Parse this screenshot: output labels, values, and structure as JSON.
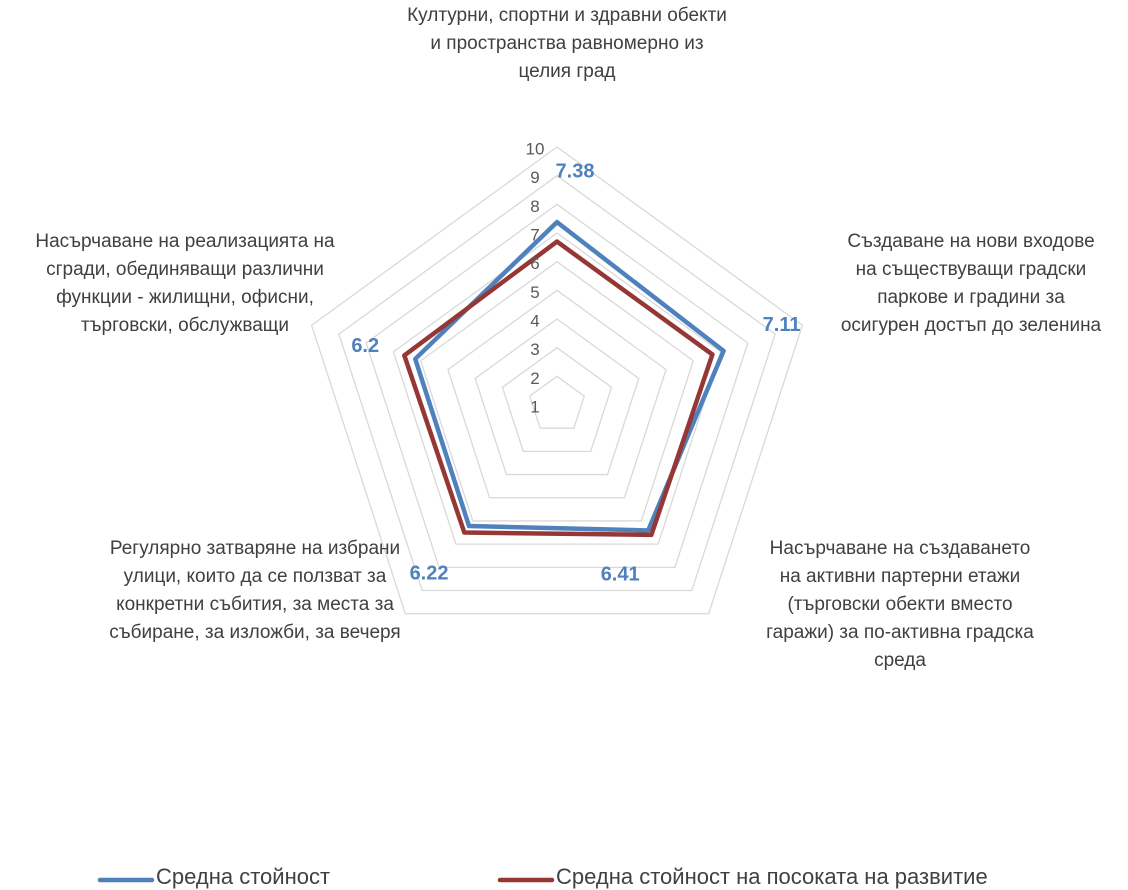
{
  "chart_data": {
    "type": "radar",
    "categories": [
      "Културни, спортни и здравни обекти и пространства равномерно из целия град",
      "Създаване на нови входове на съществуващи градски паркове и градини за осигурен достъп до зеленина",
      "Насърчаване на създаването на активни партерни етажи (търговски обекти вместо гаражи) за по-активна градска среда",
      "Регулярно затваряне на избрани улици, които да се ползват за конкретни събития, за места за събиране, за изложби, за вечеря",
      "Насърчаване на реализацията на сгради, обединяващи различни функции - жилищни, офисни, търговски, обслужващи"
    ],
    "series": [
      {
        "name": "Средна стойност",
        "color": "#4f81bd",
        "values": [
          7.38,
          7.11,
          6.41,
          6.22,
          6.2
        ]
      },
      {
        "name": "Средна стойност на посоката на развитие",
        "color": "#953735",
        "values": [
          6.7,
          6.7,
          6.6,
          6.5,
          6.6
        ]
      }
    ],
    "ylim": [
      1,
      10
    ],
    "yticks": [
      1,
      2,
      3,
      4,
      5,
      6,
      7,
      8,
      9,
      10
    ],
    "grid": true
  }
}
